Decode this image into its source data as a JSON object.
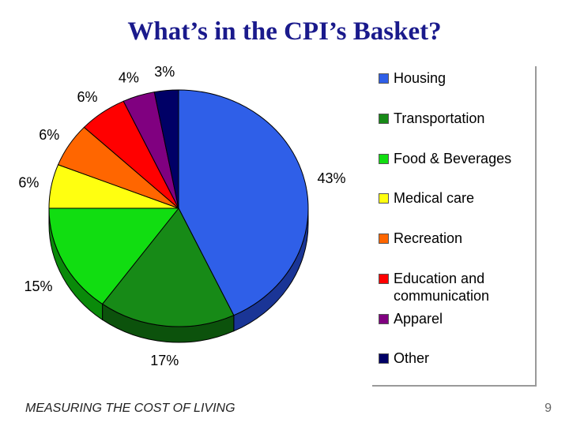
{
  "page": {
    "title": "What’s in the CPI’s Basket?",
    "footer": "MEASURING THE COST OF LIVING",
    "page_number": "9"
  },
  "chart_data": {
    "type": "pie",
    "title": "What’s in the CPI’s Basket?",
    "unit": "%",
    "legend_position": "right",
    "slices": [
      {
        "name": "Housing",
        "value": 43,
        "label": "43%",
        "color": "#2f5fe8",
        "shade": "#1a3596"
      },
      {
        "name": "Transportation",
        "value": 17,
        "label": "17%",
        "color": "#178a17",
        "shade": "#0c520c"
      },
      {
        "name": "Food & Beverages",
        "value": 15,
        "label": "15%",
        "color": "#11dd11",
        "shade": "#0a8a0a"
      },
      {
        "name": "Medical care",
        "value": 6,
        "label": "6%",
        "color": "#ffff10",
        "shade": "#a6a600"
      },
      {
        "name": "Recreation",
        "value": 6,
        "label": "6%",
        "color": "#ff6600",
        "shade": "#a34000"
      },
      {
        "name": "Education and communication",
        "value": 6,
        "label": "6%",
        "color": "#ff0000",
        "shade": "#a00000"
      },
      {
        "name": "Apparel",
        "value": 4,
        "label": "4%",
        "color": "#800080",
        "shade": "#4d004d"
      },
      {
        "name": "Other",
        "value": 3,
        "label": "3%",
        "color": "#000066",
        "shade": "#000033"
      }
    ],
    "legend": [
      {
        "label": "Housing",
        "color": "#2f5fe8"
      },
      {
        "label": "Transportation",
        "color": "#178a17"
      },
      {
        "label": "Food & Beverages",
        "color": "#11dd11"
      },
      {
        "label": "Medical care",
        "color": "#ffff10"
      },
      {
        "label": "Recreation",
        "color": "#ff6600"
      },
      {
        "label": "Education and communication",
        "color": "#ff0000"
      },
      {
        "label": "Apparel",
        "color": "#800080"
      },
      {
        "label": "Other",
        "color": "#000066"
      }
    ]
  }
}
